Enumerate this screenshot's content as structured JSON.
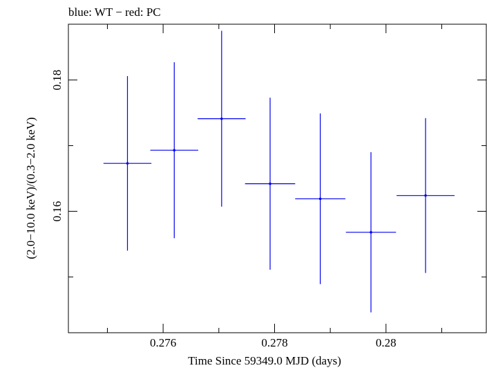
{
  "chart_data": {
    "type": "scatter",
    "title": "blue: WT − red: PC",
    "xlabel": "Time Since 59349.0 MJD (days)",
    "ylabel": "(2.0−10.0 keV)/(0.3−2.0 keV)",
    "xlim": [
      0.2743,
      0.2818
    ],
    "ylim": [
      0.1415,
      0.1885
    ],
    "x_ticks": [
      0.276,
      0.278,
      0.28
    ],
    "x_tick_labels": [
      "0.276",
      "0.278",
      "0.28"
    ],
    "y_ticks": [
      0.16,
      0.18
    ],
    "y_tick_labels": [
      "0.16",
      "0.18"
    ],
    "grid": false,
    "series": [
      {
        "color": "#0000ee",
        "points": [
          {
            "x": 0.27536,
            "xerr": 0.00043,
            "y": 0.1673,
            "yerr": 0.0133
          },
          {
            "x": 0.2762,
            "xerr": 0.00043,
            "y": 0.1693,
            "yerr": 0.0134
          },
          {
            "x": 0.27705,
            "xerr": 0.00043,
            "y": 0.1741,
            "yerr": 0.0134
          },
          {
            "x": 0.27792,
            "xerr": 0.00045,
            "y": 0.1642,
            "yerr": 0.0131
          },
          {
            "x": 0.27882,
            "xerr": 0.00045,
            "y": 0.1619,
            "yerr": 0.013
          },
          {
            "x": 0.27973,
            "xerr": 0.00045,
            "y": 0.1568,
            "yerr": 0.0122
          },
          {
            "x": 0.28071,
            "xerr": 0.00052,
            "y": 0.1624,
            "yerr": 0.0118
          }
        ]
      }
    ]
  }
}
